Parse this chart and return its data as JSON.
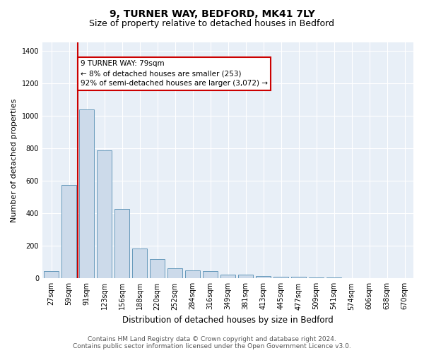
{
  "title": "9, TURNER WAY, BEDFORD, MK41 7LY",
  "subtitle": "Size of property relative to detached houses in Bedford",
  "xlabel": "Distribution of detached houses by size in Bedford",
  "ylabel": "Number of detached properties",
  "categories": [
    "27sqm",
    "59sqm",
    "91sqm",
    "123sqm",
    "156sqm",
    "188sqm",
    "220sqm",
    "252sqm",
    "284sqm",
    "316sqm",
    "349sqm",
    "381sqm",
    "413sqm",
    "445sqm",
    "477sqm",
    "509sqm",
    "541sqm",
    "574sqm",
    "606sqm",
    "638sqm",
    "670sqm"
  ],
  "values": [
    45,
    575,
    1040,
    785,
    425,
    183,
    120,
    62,
    50,
    43,
    25,
    22,
    15,
    10,
    10,
    5,
    4,
    3,
    2,
    1,
    1
  ],
  "bar_color": "#ccdaea",
  "bar_edge_color": "#6699bb",
  "red_line_color": "#cc0000",
  "red_line_xindex": 1.5,
  "annotation_line1": "9 TURNER WAY: 79sqm",
  "annotation_line2": "← 8% of detached houses are smaller (253)",
  "annotation_line3": "92% of semi-detached houses are larger (3,072) →",
  "annotation_box_color": "#ffffff",
  "annotation_box_edge": "#cc0000",
  "ylim": [
    0,
    1450
  ],
  "yticks": [
    0,
    200,
    400,
    600,
    800,
    1000,
    1200,
    1400
  ],
  "background_color": "#e8eff7",
  "footer_line1": "Contains HM Land Registry data © Crown copyright and database right 2024.",
  "footer_line2": "Contains public sector information licensed under the Open Government Licence v3.0.",
  "title_fontsize": 10,
  "subtitle_fontsize": 9,
  "xlabel_fontsize": 8.5,
  "ylabel_fontsize": 8,
  "tick_fontsize": 7,
  "annotation_fontsize": 7.5,
  "footer_fontsize": 6.5
}
